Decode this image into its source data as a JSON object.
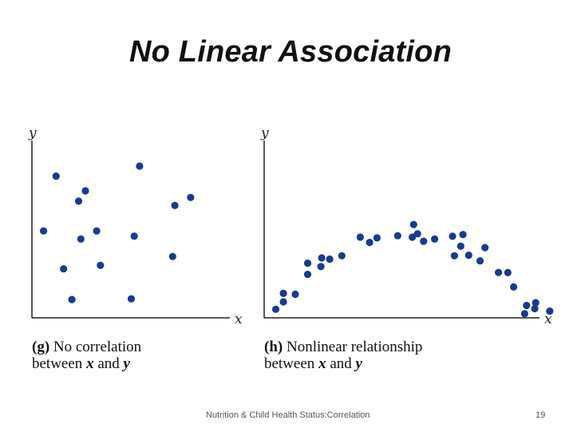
{
  "slide": {
    "title": "No Linear Association",
    "footer": "Nutrition & Child Health Status:Correlation",
    "page_number": "19"
  },
  "panels": [
    {
      "tag": "(g)",
      "caption_line1": "No correlation",
      "caption_line2_pre": "between",
      "caption_var_x": "x",
      "caption_and": "and",
      "caption_var_y": "y",
      "x_axis_label": "x",
      "y_axis_label": "y"
    },
    {
      "tag": "(h)",
      "caption_line1": "Nonlinear relationship",
      "caption_line2_pre": "between",
      "caption_var_x": "x",
      "caption_and": "and",
      "caption_var_y": "y",
      "x_axis_label": "x",
      "y_axis_label": "y"
    }
  ],
  "colors": {
    "point": "#1a3a8c",
    "axis": "#222222"
  },
  "chart_data": [
    {
      "type": "scatter",
      "title": "",
      "xlabel": "x",
      "ylabel": "y",
      "xlim": [
        0,
        100
      ],
      "ylim": [
        0,
        100
      ],
      "grid": false,
      "points": [
        {
          "x": 5.9,
          "y": 49.0
        },
        {
          "x": 12.2,
          "y": 79.9
        },
        {
          "x": 16.0,
          "y": 27.6
        },
        {
          "x": 20.2,
          "y": 10.3
        },
        {
          "x": 23.6,
          "y": 65.8
        },
        {
          "x": 24.7,
          "y": 44.4
        },
        {
          "x": 27.0,
          "y": 71.6
        },
        {
          "x": 32.7,
          "y": 49.0
        },
        {
          "x": 34.6,
          "y": 29.6
        },
        {
          "x": 50.2,
          "y": 10.7
        },
        {
          "x": 51.7,
          "y": 46.1
        },
        {
          "x": 54.4,
          "y": 85.6
        },
        {
          "x": 71.1,
          "y": 34.6
        },
        {
          "x": 72.2,
          "y": 63.4
        },
        {
          "x": 80.2,
          "y": 67.9
        }
      ]
    },
    {
      "type": "scatter",
      "title": "",
      "xlabel": "x",
      "ylabel": "y",
      "xlim": [
        0,
        100
      ],
      "ylim": [
        0,
        100
      ],
      "grid": false,
      "points": [
        {
          "x": 4.2,
          "y": 4.8
        },
        {
          "x": 7.0,
          "y": 9.0
        },
        {
          "x": 7.0,
          "y": 13.8
        },
        {
          "x": 11.3,
          "y": 13.3
        },
        {
          "x": 15.8,
          "y": 24.5
        },
        {
          "x": 15.8,
          "y": 30.8
        },
        {
          "x": 20.6,
          "y": 28.9
        },
        {
          "x": 20.9,
          "y": 33.8
        },
        {
          "x": 23.8,
          "y": 33.1
        },
        {
          "x": 28.2,
          "y": 35.0
        },
        {
          "x": 34.9,
          "y": 45.5
        },
        {
          "x": 38.3,
          "y": 42.5
        },
        {
          "x": 41.0,
          "y": 45.1
        },
        {
          "x": 48.5,
          "y": 46.3
        },
        {
          "x": 53.8,
          "y": 45.5
        },
        {
          "x": 54.3,
          "y": 52.6
        },
        {
          "x": 55.7,
          "y": 47.4
        },
        {
          "x": 57.9,
          "y": 43.2
        },
        {
          "x": 61.9,
          "y": 44.4
        },
        {
          "x": 68.4,
          "y": 46.0
        },
        {
          "x": 69.1,
          "y": 35.0
        },
        {
          "x": 71.4,
          "y": 40.4
        },
        {
          "x": 72.2,
          "y": 47.0
        },
        {
          "x": 74.3,
          "y": 35.3
        },
        {
          "x": 78.4,
          "y": 32.1
        },
        {
          "x": 80.2,
          "y": 39.6
        },
        {
          "x": 85.1,
          "y": 25.6
        },
        {
          "x": 88.5,
          "y": 25.5
        },
        {
          "x": 90.6,
          "y": 17.4
        },
        {
          "x": 94.6,
          "y": 2.3
        },
        {
          "x": 95.3,
          "y": 7.0
        },
        {
          "x": 98.3,
          "y": 5.2
        },
        {
          "x": 98.6,
          "y": 8.5
        },
        {
          "x": 103.7,
          "y": 3.8
        }
      ]
    }
  ]
}
